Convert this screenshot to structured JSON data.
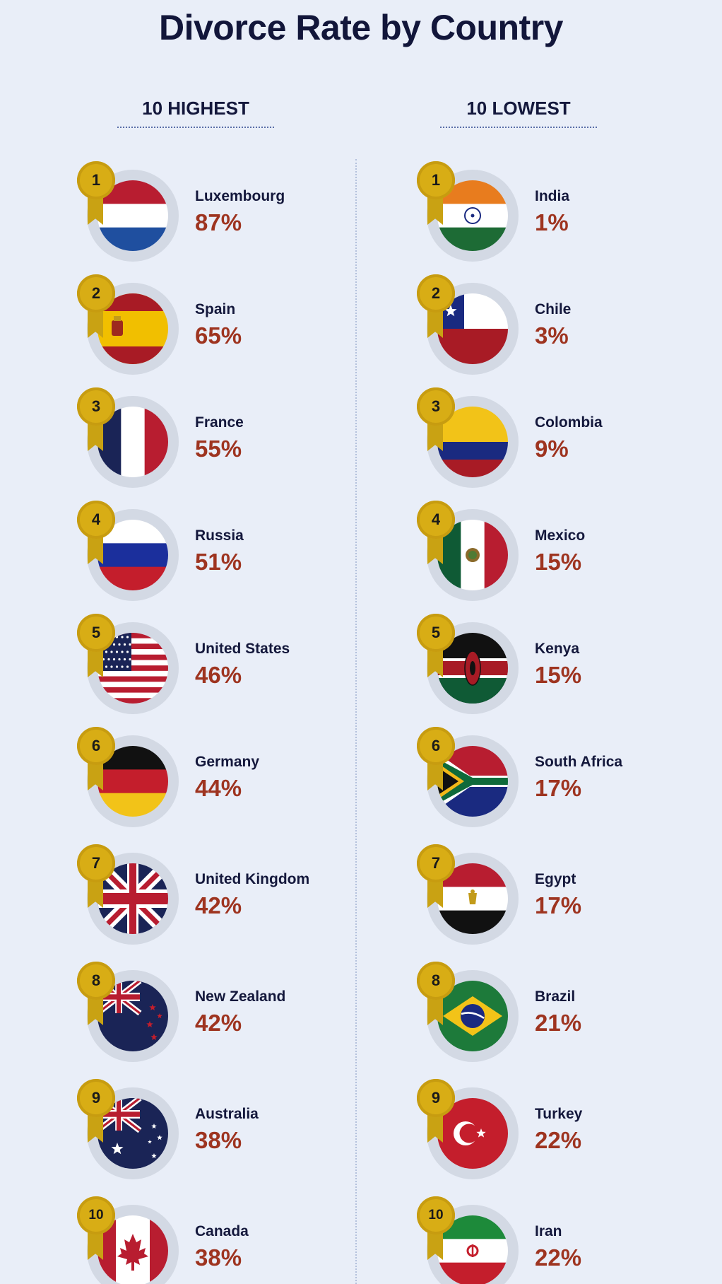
{
  "title": "Divorce Rate by Country",
  "columns": [
    {
      "heading": "10 HIGHEST",
      "entries": [
        {
          "rank": "1",
          "country": "Luxembourg",
          "rate": "87%",
          "flag": "luxembourg-flag-icon"
        },
        {
          "rank": "2",
          "country": "Spain",
          "rate": "65%",
          "flag": "spain-flag-icon"
        },
        {
          "rank": "3",
          "country": "France",
          "rate": "55%",
          "flag": "france-flag-icon"
        },
        {
          "rank": "4",
          "country": "Russia",
          "rate": "51%",
          "flag": "russia-flag-icon"
        },
        {
          "rank": "5",
          "country": "United States",
          "rate": "46%",
          "flag": "united-states-flag-icon"
        },
        {
          "rank": "6",
          "country": "Germany",
          "rate": "44%",
          "flag": "germany-flag-icon"
        },
        {
          "rank": "7",
          "country": "United Kingdom",
          "rate": "42%",
          "flag": "united-kingdom-flag-icon"
        },
        {
          "rank": "8",
          "country": "New Zealand",
          "rate": "42%",
          "flag": "new-zealand-flag-icon"
        },
        {
          "rank": "9",
          "country": "Australia",
          "rate": "38%",
          "flag": "australia-flag-icon"
        },
        {
          "rank": "10",
          "country": "Canada",
          "rate": "38%",
          "flag": "canada-flag-icon"
        }
      ]
    },
    {
      "heading": "10 LOWEST",
      "entries": [
        {
          "rank": "1",
          "country": "India",
          "rate": "1%",
          "flag": "india-flag-icon"
        },
        {
          "rank": "2",
          "country": "Chile",
          "rate": "3%",
          "flag": "chile-flag-icon"
        },
        {
          "rank": "3",
          "country": "Colombia",
          "rate": "9%",
          "flag": "colombia-flag-icon"
        },
        {
          "rank": "4",
          "country": "Mexico",
          "rate": "15%",
          "flag": "mexico-flag-icon"
        },
        {
          "rank": "5",
          "country": "Kenya",
          "rate": "15%",
          "flag": "kenya-flag-icon"
        },
        {
          "rank": "6",
          "country": "South Africa",
          "rate": "17%",
          "flag": "south-africa-flag-icon"
        },
        {
          "rank": "7",
          "country": "Egypt",
          "rate": "17%",
          "flag": "egypt-flag-icon"
        },
        {
          "rank": "8",
          "country": "Brazil",
          "rate": "21%",
          "flag": "brazil-flag-icon"
        },
        {
          "rank": "9",
          "country": "Turkey",
          "rate": "22%",
          "flag": "turkey-flag-icon"
        },
        {
          "rank": "10",
          "country": "Iran",
          "rate": "22%",
          "flag": "iran-flag-icon"
        }
      ]
    }
  ],
  "colors": {
    "background": "#e9eef8",
    "title": "#12163a",
    "rate": "#9e3420",
    "medal": "#d8ad15",
    "ring": "#d3d9e4"
  }
}
